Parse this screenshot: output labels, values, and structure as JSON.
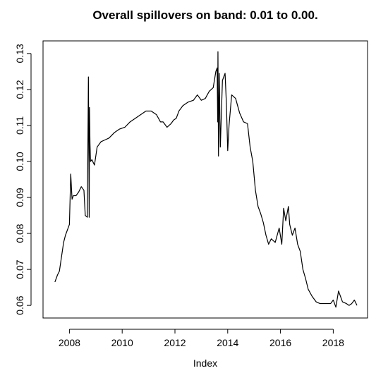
{
  "chart_data": {
    "type": "line",
    "title": "Overall spillovers on band: 0.01 to 0.00.",
    "xlabel": "Index",
    "ylabel": "",
    "xlim": [
      2007.0,
      2019.3
    ],
    "ylim": [
      0.0565,
      0.1335
    ],
    "x_ticks": [
      2008,
      2010,
      2012,
      2014,
      2016,
      2018
    ],
    "x_tick_labels": [
      "2008",
      "2010",
      "2012",
      "2014",
      "2016",
      "2018"
    ],
    "y_ticks": [
      0.06,
      0.07,
      0.08,
      0.09,
      0.1,
      0.11,
      0.12,
      0.13
    ],
    "y_tick_labels": [
      "0.06",
      "0.07",
      "0.08",
      "0.09",
      "0.10",
      "0.11",
      "0.12",
      "0.13"
    ],
    "grid": false,
    "legend": "none",
    "series": [
      {
        "color": "#000000",
        "x": [
          2007.45,
          2007.55,
          2007.62,
          2007.7,
          2007.78,
          2007.85,
          2007.95,
          2008.0,
          2008.05,
          2008.1,
          2008.15,
          2008.25,
          2008.35,
          2008.45,
          2008.55,
          2008.6,
          2008.68,
          2008.72,
          2008.75,
          2008.76,
          2008.78,
          2008.8,
          2008.85,
          2008.95,
          2009.05,
          2009.2,
          2009.35,
          2009.5,
          2009.7,
          2009.9,
          2010.1,
          2010.3,
          2010.5,
          2010.7,
          2010.9,
          2011.1,
          2011.3,
          2011.45,
          2011.55,
          2011.7,
          2011.85,
          2011.95,
          2012.05,
          2012.15,
          2012.3,
          2012.5,
          2012.7,
          2012.85,
          2013.0,
          2013.15,
          2013.3,
          2013.45,
          2013.55,
          2013.6,
          2013.62,
          2013.63,
          2013.65,
          2013.68,
          2013.72,
          2013.8,
          2013.9,
          2013.95,
          2014.0,
          2014.05,
          2014.15,
          2014.3,
          2014.45,
          2014.6,
          2014.75,
          2014.85,
          2014.95,
          2015.05,
          2015.15,
          2015.25,
          2015.35,
          2015.45,
          2015.55,
          2015.65,
          2015.8,
          2015.95,
          2016.05,
          2016.12,
          2016.2,
          2016.3,
          2016.35,
          2016.45,
          2016.55,
          2016.65,
          2016.75,
          2016.85,
          2016.95,
          2017.05,
          2017.2,
          2017.35,
          2017.5,
          2017.7,
          2017.9,
          2018.0,
          2018.1,
          2018.2,
          2018.35,
          2018.5,
          2018.6,
          2018.7,
          2018.8,
          2018.9
        ],
        "y": [
          0.0665,
          0.0685,
          0.0695,
          0.0735,
          0.0775,
          0.0795,
          0.0815,
          0.0825,
          0.0965,
          0.0895,
          0.0905,
          0.0905,
          0.0915,
          0.093,
          0.092,
          0.085,
          0.0845,
          0.1235,
          0.0845,
          0.115,
          0.105,
          0.1,
          0.1005,
          0.099,
          0.104,
          0.1055,
          0.106,
          0.1065,
          0.108,
          0.109,
          0.1095,
          0.111,
          0.112,
          0.113,
          0.114,
          0.114,
          0.113,
          0.111,
          0.111,
          0.1095,
          0.1105,
          0.1115,
          0.112,
          0.114,
          0.1155,
          0.1165,
          0.117,
          0.1185,
          0.117,
          0.1175,
          0.1195,
          0.1205,
          0.125,
          0.126,
          0.111,
          0.1305,
          0.1015,
          0.1245,
          0.104,
          0.1225,
          0.1245,
          0.116,
          0.103,
          0.11,
          0.1185,
          0.1175,
          0.1135,
          0.111,
          0.1105,
          0.104,
          0.1,
          0.092,
          0.0875,
          0.0855,
          0.083,
          0.0795,
          0.077,
          0.0785,
          0.0775,
          0.0815,
          0.077,
          0.087,
          0.0835,
          0.0875,
          0.0825,
          0.0795,
          0.0815,
          0.077,
          0.075,
          0.07,
          0.0675,
          0.0645,
          0.0625,
          0.061,
          0.0605,
          0.0605,
          0.0605,
          0.0615,
          0.0595,
          0.064,
          0.061,
          0.0605,
          0.06,
          0.0605,
          0.0615,
          0.06
        ]
      }
    ]
  }
}
